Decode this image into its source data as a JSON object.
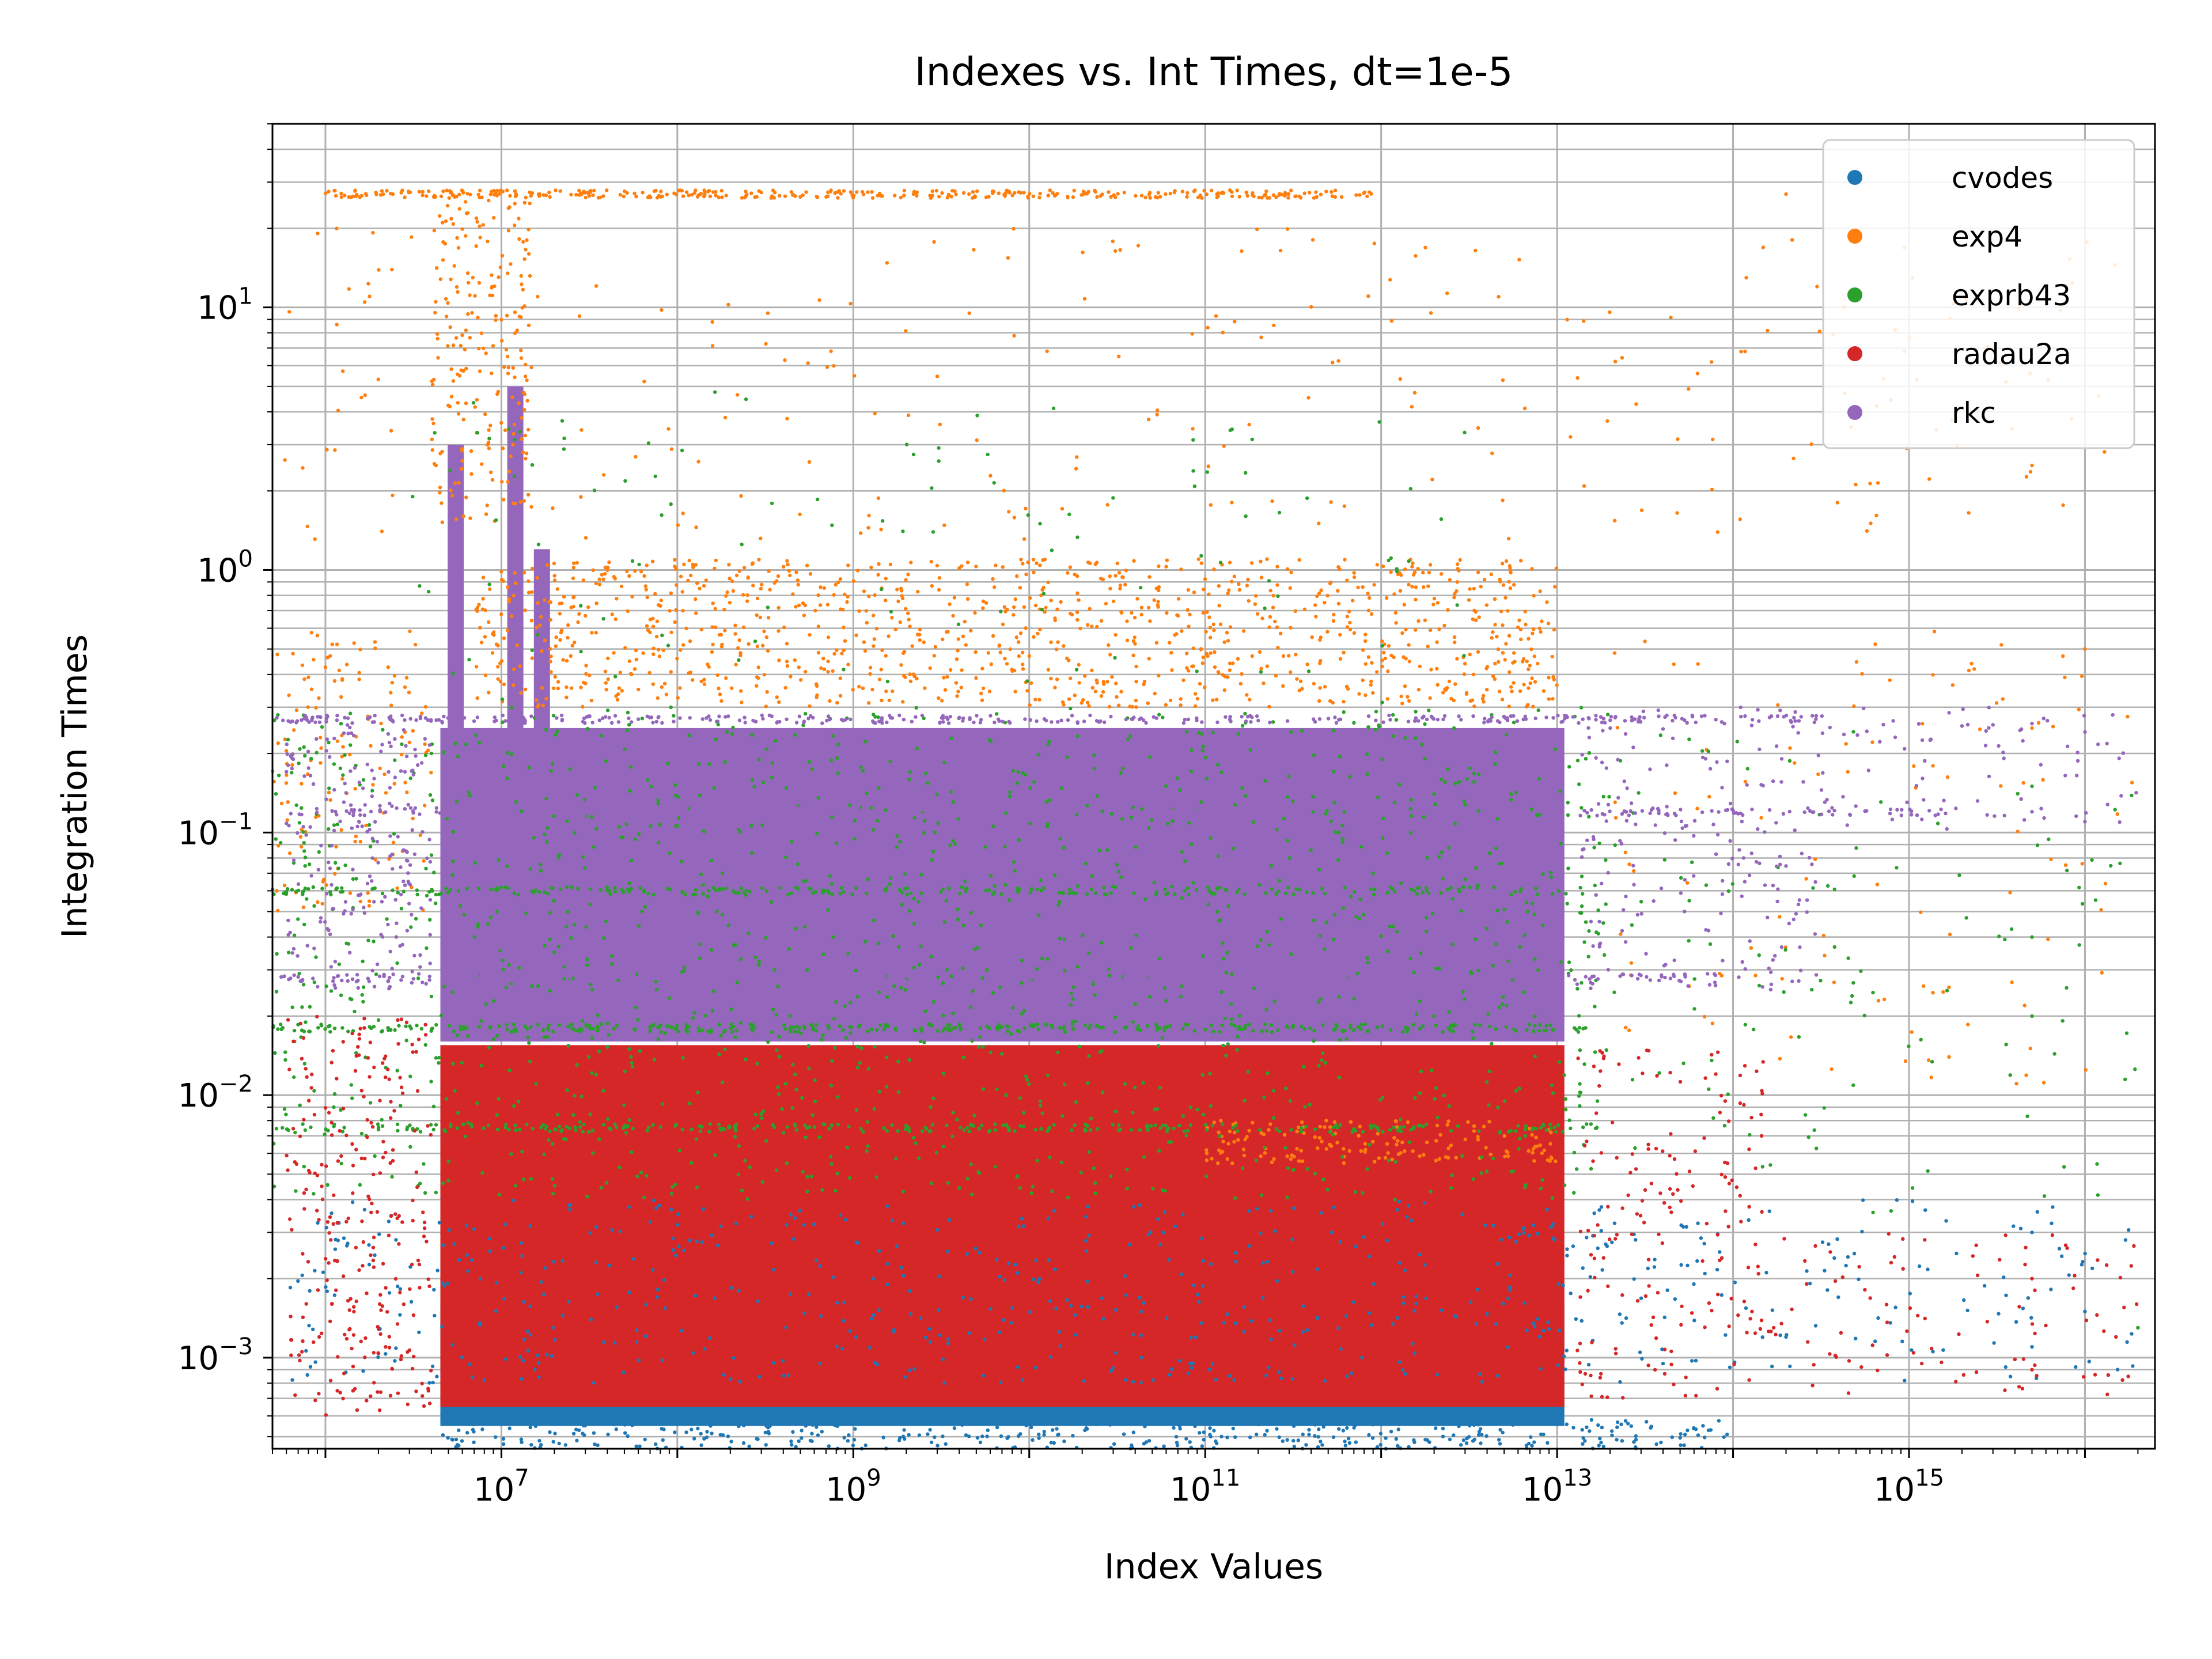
{
  "chart_data": {
    "type": "scatter",
    "title": "Indexes vs. Int Times, dt=1e-5",
    "xlabel": "Index Values",
    "ylabel": "Integration Times",
    "xscale": "log",
    "yscale": "log",
    "xlim": [
      500000,
      2.5e+16
    ],
    "ylim": [
      0.00045,
      50
    ],
    "grid": true,
    "legend_position": "top-right",
    "x_ticks": [
      {
        "base": "10",
        "exp": "7"
      },
      {
        "base": "10",
        "exp": "9"
      },
      {
        "base": "10",
        "exp": "11"
      },
      {
        "base": "10",
        "exp": "13"
      },
      {
        "base": "10",
        "exp": "15"
      }
    ],
    "y_ticks": [
      {
        "base": "10",
        "exp": "−3"
      },
      {
        "base": "10",
        "exp": "−2"
      },
      {
        "base": "10",
        "exp": "−1"
      },
      {
        "base": "10",
        "exp": "0"
      },
      {
        "base": "10",
        "exp": "1"
      }
    ],
    "series": [
      {
        "name": "cvodes",
        "color": "#1f77b4",
        "clusters": [
          {
            "x": [
              4500000.0,
              100000000000000.0
            ],
            "y": [
              0.00045,
              0.00058
            ],
            "n": 420
          },
          {
            "x": [
              600000.0,
              30000000000000.0
            ],
            "y": [
              0.0008,
              0.004
            ],
            "n": 520
          },
          {
            "x": [
              30000000000000.0,
              2e+16
            ],
            "y": [
              0.0008,
              0.004
            ],
            "n": 110
          }
        ],
        "points": [
          [
            5000000000000000.0,
            0.0011
          ],
          [
            5000000000000000.0,
            0.003
          ],
          [
            1e+16,
            0.0015
          ],
          [
            200000000000000.0,
            0.0012
          ],
          [
            40000000000000.0,
            0.00095
          ]
        ]
      },
      {
        "name": "exp4",
        "color": "#ff7f0e",
        "clusters": [
          {
            "x": [
              7000000.0,
              10000000000000.0
            ],
            "y": [
              0.3,
              1.1
            ],
            "n": 1100
          },
          {
            "x": [
              500000.0,
              4000000.0
            ],
            "y": [
              0.05,
              0.6
            ],
            "n": 140
          },
          {
            "x": [
              500000.0,
              2e+16
            ],
            "y": [
              1.3,
              20
            ],
            "n": 240
          },
          {
            "x": [
              20000000000000.0,
              2e+16
            ],
            "y": [
              0.01,
              0.6
            ],
            "n": 110
          },
          {
            "x": [
              100000000000.0,
              10000000000000.0
            ],
            "y": [
              0.0055,
              0.008
            ],
            "n": 150
          },
          {
            "x": [
              4000000.0,
              15000000.0
            ],
            "y": [
              1.5,
              26
            ],
            "n": 200
          }
        ],
        "hlines": [
          {
            "x": [
              1000000.0,
              1000000000000.0
            ],
            "y": 27,
            "n": 380
          }
        ],
        "points": [
          [
            5000000000000000.0,
            2.5
          ],
          [
            1e+16,
            0.5
          ],
          [
            300000000000000.0,
            12
          ],
          [
            200000000000000.0,
            27
          ],
          [
            5000000000000000.0,
            0.25
          ]
        ]
      },
      {
        "name": "exprb43",
        "color": "#2ca02c",
        "clusters": [
          {
            "x": [
              500000.0,
              20000000000000.0
            ],
            "y": [
              0.004,
              0.3
            ],
            "n": 1400
          },
          {
            "x": [
              3000000.0,
              3000000000000.0
            ],
            "y": [
              0.3,
              5
            ],
            "n": 110
          },
          {
            "x": [
              20000000000000.0,
              2e+16
            ],
            "y": [
              0.003,
              0.25
            ],
            "n": 110
          }
        ],
        "hlines": [
          {
            "x": [
              500000.0,
              15000000000000.0
            ],
            "y": 0.018,
            "n": 320
          },
          {
            "x": [
              500000.0,
              15000000000000.0
            ],
            "y": 0.0075,
            "n": 240
          },
          {
            "x": [
              500000.0,
              15000000000000.0
            ],
            "y": 0.06,
            "n": 240
          }
        ],
        "points": [
          [
            5000000000000000.0,
            0.04
          ],
          [
            5000000000000000.0,
            0.02
          ],
          [
            5000000000000000.0,
            0.15
          ],
          [
            2e+16,
            0.0013
          ]
        ]
      },
      {
        "name": "radau2a",
        "color": "#d62728",
        "clusters": [
          {
            "x": [
              600000.0,
              4000000.0
            ],
            "y": [
              0.0006,
              0.02
            ],
            "n": 260
          },
          {
            "x": [
              13000000000000.0,
              150000000000000.0
            ],
            "y": [
              0.0007,
              0.015
            ],
            "n": 170
          },
          {
            "x": [
              150000000000000.0,
              2e+16
            ],
            "y": [
              0.0007,
              0.003
            ],
            "n": 90
          }
        ],
        "points": [
          [
            5000000000000000.0,
            0.0009
          ],
          [
            5000000000000000.0,
            0.002
          ],
          [
            1.5e+16,
            0.0012
          ]
        ]
      },
      {
        "name": "rkc",
        "color": "#9467bd",
        "clusters": [
          {
            "x": [
              600000.0,
              4000000.0
            ],
            "y": [
              0.025,
              0.28
            ],
            "n": 210
          },
          {
            "x": [
              13000000000000.0,
              300000000000000.0
            ],
            "y": [
              0.025,
              0.3
            ],
            "n": 180
          },
          {
            "x": [
              300000000000000.0,
              2e+16
            ],
            "y": [
              0.1,
              0.3
            ],
            "n": 80
          }
        ],
        "hlines": [
          {
            "x": [
              500000.0,
              300000000000000.0
            ],
            "y": 0.27,
            "n": 360
          },
          {
            "x": [
              500000.0,
              2000000000000000.0
            ],
            "y": 0.12,
            "n": 320
          },
          {
            "x": [
              500000.0,
              80000000000000.0
            ],
            "y": 0.028,
            "n": 280
          }
        ],
        "points": [
          [
            5000000000000000.0,
            0.26
          ],
          [
            5000000000000000.0,
            0.12
          ],
          [
            1e+16,
            0.11
          ]
        ]
      }
    ],
    "dense_bands": [
      {
        "series": "cvodes",
        "color": "#1f77b4",
        "x": [
          4500000.0,
          11000000000000.0
        ],
        "y": [
          0.00055,
          0.0016
        ]
      },
      {
        "series": "radau2a",
        "color": "#d62728",
        "x": [
          4500000.0,
          11000000000000.0
        ],
        "y": [
          0.00065,
          0.0155
        ]
      },
      {
        "series": "rkc",
        "color": "#9467bd",
        "x": [
          4500000.0,
          11000000000000.0
        ],
        "y": [
          0.016,
          0.25
        ]
      }
    ],
    "spikes": [
      {
        "series": "rkc",
        "color": "#9467bd",
        "x": 5500000.0,
        "y": [
          0.016,
          3
        ]
      },
      {
        "series": "rkc",
        "color": "#9467bd",
        "x": 12000000.0,
        "y": [
          0.016,
          5
        ]
      },
      {
        "series": "rkc",
        "color": "#9467bd",
        "x": 17000000.0,
        "y": [
          0.016,
          1.2
        ]
      }
    ]
  }
}
